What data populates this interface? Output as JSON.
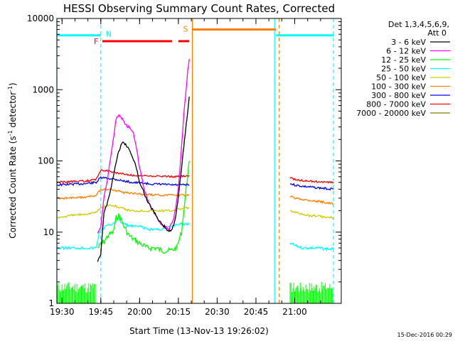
{
  "chart_data": {
    "type": "line",
    "title": "HESSI Observing Summary Count Rates, Corrected",
    "xlabel": "Start Time (13-Nov-13 19:26:02)",
    "ylabel_main": "Corrected Count Rate (s",
    "ylabel_sup1": "-1",
    "ylabel_mid": " detector",
    "ylabel_sup2": "-1",
    "ylabel_end": ")",
    "yscale": "log",
    "ylim": [
      1,
      10000
    ],
    "xlim_minutes": [
      19.4667,
      21.3
    ],
    "x_ticks": [
      {
        "label": "19:30",
        "value": 19.5
      },
      {
        "label": "19:45",
        "value": 19.75
      },
      {
        "label": "20:00",
        "value": 20.0
      },
      {
        "label": "20:15",
        "value": 20.25
      },
      {
        "label": "20:30",
        "value": 20.5
      },
      {
        "label": "20:45",
        "value": 20.75
      },
      {
        "label": "21:00",
        "value": 21.0
      }
    ],
    "y_ticks": [
      {
        "label": "1",
        "value": 1
      },
      {
        "label": "10",
        "value": 10
      },
      {
        "label": "100",
        "value": 100
      },
      {
        "label": "1000",
        "value": 1000
      },
      {
        "label": "10000",
        "value": 10000
      }
    ],
    "legend_header_1": "Det 1,3,4,5,6,9,",
    "legend_header_2": "Att 0",
    "legend_placement": "right",
    "series": [
      {
        "name": "3 - 6 keV",
        "color": "#000000"
      },
      {
        "name": "6 - 12 keV",
        "color": "#ff00ff"
      },
      {
        "name": "12 - 25 keV",
        "color": "#00ff00"
      },
      {
        "name": "25 - 50 keV",
        "color": "#00ffff"
      },
      {
        "name": "50 - 100 keV",
        "color": "#cccc00"
      },
      {
        "name": "100 - 300 keV",
        "color": "#ff8000"
      },
      {
        "name": "300 - 800 keV",
        "color": "#0000ff"
      },
      {
        "name": "800 - 7000 keV",
        "color": "#ff0000"
      },
      {
        "name": "7000 - 20000 keV",
        "color": "#808000"
      }
    ],
    "lines": {
      "black": [
        [
          19.73,
          4
        ],
        [
          19.75,
          5
        ],
        [
          19.77,
          18
        ],
        [
          19.8,
          30
        ],
        [
          19.83,
          60
        ],
        [
          19.86,
          120
        ],
        [
          19.88,
          170
        ],
        [
          19.9,
          180
        ],
        [
          19.92,
          160
        ],
        [
          19.95,
          120
        ],
        [
          19.98,
          80
        ],
        [
          20.0,
          50
        ],
        [
          20.03,
          35
        ],
        [
          20.06,
          25
        ],
        [
          20.1,
          18
        ],
        [
          20.13,
          14
        ],
        [
          20.16,
          12
        ],
        [
          20.19,
          10
        ],
        [
          20.21,
          11
        ],
        [
          20.23,
          15
        ],
        [
          20.25,
          30
        ],
        [
          20.27,
          80
        ],
        [
          20.29,
          200
        ],
        [
          20.31,
          500
        ],
        [
          20.32,
          800
        ]
      ],
      "magenta": [
        [
          19.73,
          10
        ],
        [
          19.75,
          12
        ],
        [
          19.77,
          30
        ],
        [
          19.8,
          70
        ],
        [
          19.83,
          200
        ],
        [
          19.85,
          400
        ],
        [
          19.87,
          450
        ],
        [
          19.89,
          380
        ],
        [
          19.91,
          320
        ],
        [
          19.93,
          300
        ],
        [
          19.96,
          250
        ],
        [
          19.98,
          150
        ],
        [
          20.0,
          80
        ],
        [
          20.03,
          40
        ],
        [
          20.06,
          25
        ],
        [
          20.1,
          18
        ],
        [
          20.13,
          14
        ],
        [
          20.16,
          12
        ],
        [
          20.19,
          11
        ],
        [
          20.22,
          15
        ],
        [
          20.25,
          40
        ],
        [
          20.27,
          150
        ],
        [
          20.29,
          600
        ],
        [
          20.31,
          1800
        ],
        [
          20.32,
          2700
        ]
      ],
      "green_pre": [
        [
          19.47,
          1.3
        ],
        [
          19.5,
          1.2
        ],
        [
          19.55,
          1.5
        ],
        [
          19.6,
          1.3
        ],
        [
          19.65,
          1.4
        ],
        [
          19.7,
          1.2
        ],
        [
          19.72,
          1.5
        ]
      ],
      "green": [
        [
          19.73,
          6
        ],
        [
          19.76,
          7
        ],
        [
          19.8,
          9
        ],
        [
          19.83,
          10
        ],
        [
          19.85,
          16
        ],
        [
          19.87,
          17
        ],
        [
          19.9,
          12
        ],
        [
          19.93,
          9
        ],
        [
          19.96,
          8
        ],
        [
          20.0,
          7
        ],
        [
          20.05,
          6
        ],
        [
          20.1,
          6
        ],
        [
          20.15,
          5.5
        ],
        [
          20.2,
          5.5
        ],
        [
          20.24,
          6
        ],
        [
          20.27,
          10
        ],
        [
          20.3,
          40
        ],
        [
          20.32,
          100
        ]
      ],
      "cyan": [
        [
          19.47,
          6
        ],
        [
          19.55,
          6
        ],
        [
          19.6,
          6
        ],
        [
          19.65,
          6
        ],
        [
          19.72,
          6
        ],
        [
          19.74,
          10
        ],
        [
          19.78,
          12
        ],
        [
          19.82,
          13
        ],
        [
          19.86,
          15
        ],
        [
          19.9,
          13
        ],
        [
          19.95,
          12
        ],
        [
          20.0,
          12
        ],
        [
          20.05,
          11
        ],
        [
          20.1,
          11
        ],
        [
          20.15,
          11
        ],
        [
          20.2,
          12
        ],
        [
          20.25,
          13
        ],
        [
          20.32,
          13
        ]
      ],
      "yellow": [
        [
          19.47,
          16
        ],
        [
          19.55,
          17
        ],
        [
          19.65,
          18
        ],
        [
          19.72,
          19
        ],
        [
          19.75,
          22
        ],
        [
          19.8,
          24
        ],
        [
          19.85,
          23
        ],
        [
          19.9,
          21
        ],
        [
          19.95,
          20
        ],
        [
          20.0,
          20
        ],
        [
          20.05,
          20
        ],
        [
          20.1,
          20
        ],
        [
          20.15,
          20
        ],
        [
          20.2,
          20
        ],
        [
          20.25,
          21
        ],
        [
          20.32,
          22
        ]
      ],
      "orange": [
        [
          19.47,
          30
        ],
        [
          19.55,
          30
        ],
        [
          19.65,
          31
        ],
        [
          19.72,
          33
        ],
        [
          19.75,
          40
        ],
        [
          19.8,
          40
        ],
        [
          19.85,
          38
        ],
        [
          19.9,
          36
        ],
        [
          19.95,
          35
        ],
        [
          20.0,
          34
        ],
        [
          20.05,
          34
        ],
        [
          20.1,
          33
        ],
        [
          20.15,
          33
        ],
        [
          20.2,
          33
        ],
        [
          20.25,
          33
        ],
        [
          20.32,
          33
        ]
      ],
      "blue": [
        [
          19.47,
          46
        ],
        [
          19.55,
          47
        ],
        [
          19.65,
          48
        ],
        [
          19.72,
          50
        ],
        [
          19.75,
          58
        ],
        [
          19.8,
          57
        ],
        [
          19.85,
          55
        ],
        [
          19.9,
          52
        ],
        [
          19.95,
          50
        ],
        [
          20.0,
          49
        ],
        [
          20.05,
          48
        ],
        [
          20.1,
          47
        ],
        [
          20.15,
          47
        ],
        [
          20.2,
          46
        ],
        [
          20.25,
          46
        ],
        [
          20.32,
          46
        ]
      ],
      "red": [
        [
          19.47,
          50
        ],
        [
          19.55,
          51
        ],
        [
          19.65,
          52
        ],
        [
          19.72,
          55
        ],
        [
          19.75,
          75
        ],
        [
          19.8,
          72
        ],
        [
          19.85,
          68
        ],
        [
          19.9,
          65
        ],
        [
          19.95,
          63
        ],
        [
          20.0,
          62
        ],
        [
          20.05,
          62
        ],
        [
          20.1,
          61
        ],
        [
          20.15,
          61
        ],
        [
          20.2,
          60
        ],
        [
          20.25,
          60
        ],
        [
          20.32,
          62
        ]
      ],
      "red_post": [
        [
          20.97,
          58
        ],
        [
          21.0,
          55
        ],
        [
          21.05,
          53
        ],
        [
          21.1,
          52
        ],
        [
          21.15,
          51
        ],
        [
          21.2,
          50
        ],
        [
          21.25,
          50
        ]
      ],
      "blue_post": [
        [
          20.97,
          48
        ],
        [
          21.0,
          46
        ],
        [
          21.05,
          44
        ],
        [
          21.1,
          43
        ],
        [
          21.15,
          42
        ],
        [
          21.2,
          41
        ],
        [
          21.25,
          40
        ]
      ],
      "orange_post": [
        [
          20.97,
          32
        ],
        [
          21.0,
          30
        ],
        [
          21.05,
          29
        ],
        [
          21.1,
          28
        ],
        [
          21.15,
          27
        ],
        [
          21.2,
          26
        ],
        [
          21.25,
          25
        ]
      ],
      "yellow_post": [
        [
          20.97,
          20
        ],
        [
          21.0,
          19
        ],
        [
          21.05,
          18
        ],
        [
          21.1,
          17
        ],
        [
          21.15,
          17
        ],
        [
          21.2,
          16
        ],
        [
          21.25,
          16
        ]
      ],
      "cyan_post": [
        [
          20.97,
          7
        ],
        [
          21.0,
          6.5
        ],
        [
          21.05,
          6
        ],
        [
          21.1,
          6
        ],
        [
          21.15,
          6
        ],
        [
          21.2,
          5.8
        ],
        [
          21.25,
          5.8
        ]
      ],
      "green_post": [
        [
          20.97,
          1.4
        ],
        [
          21.0,
          1.3
        ],
        [
          21.05,
          1.5
        ],
        [
          21.1,
          1.3
        ],
        [
          21.15,
          1.4
        ],
        [
          21.2,
          1.3
        ],
        [
          21.25,
          1.4
        ]
      ]
    },
    "flags": {
      "N_label": "N",
      "F_label": "F",
      "S_label": "S",
      "N_bar_1": [
        19.4667,
        19.75
      ],
      "N_bar_2": [
        20.88,
        21.25
      ],
      "F_bar_1": [
        19.76,
        20.21
      ],
      "F_bar_2": [
        20.25,
        20.32
      ],
      "S_bar": [
        20.34,
        20.88
      ],
      "cyan_lines": [
        19.4667,
        20.87
      ],
      "cyan_dashed": [
        19.75,
        21.25
      ],
      "orange_lines": [
        20.34
      ],
      "orange_dashed": [
        20.9
      ]
    },
    "footer_date": "15-Dec-2016 00:29"
  }
}
